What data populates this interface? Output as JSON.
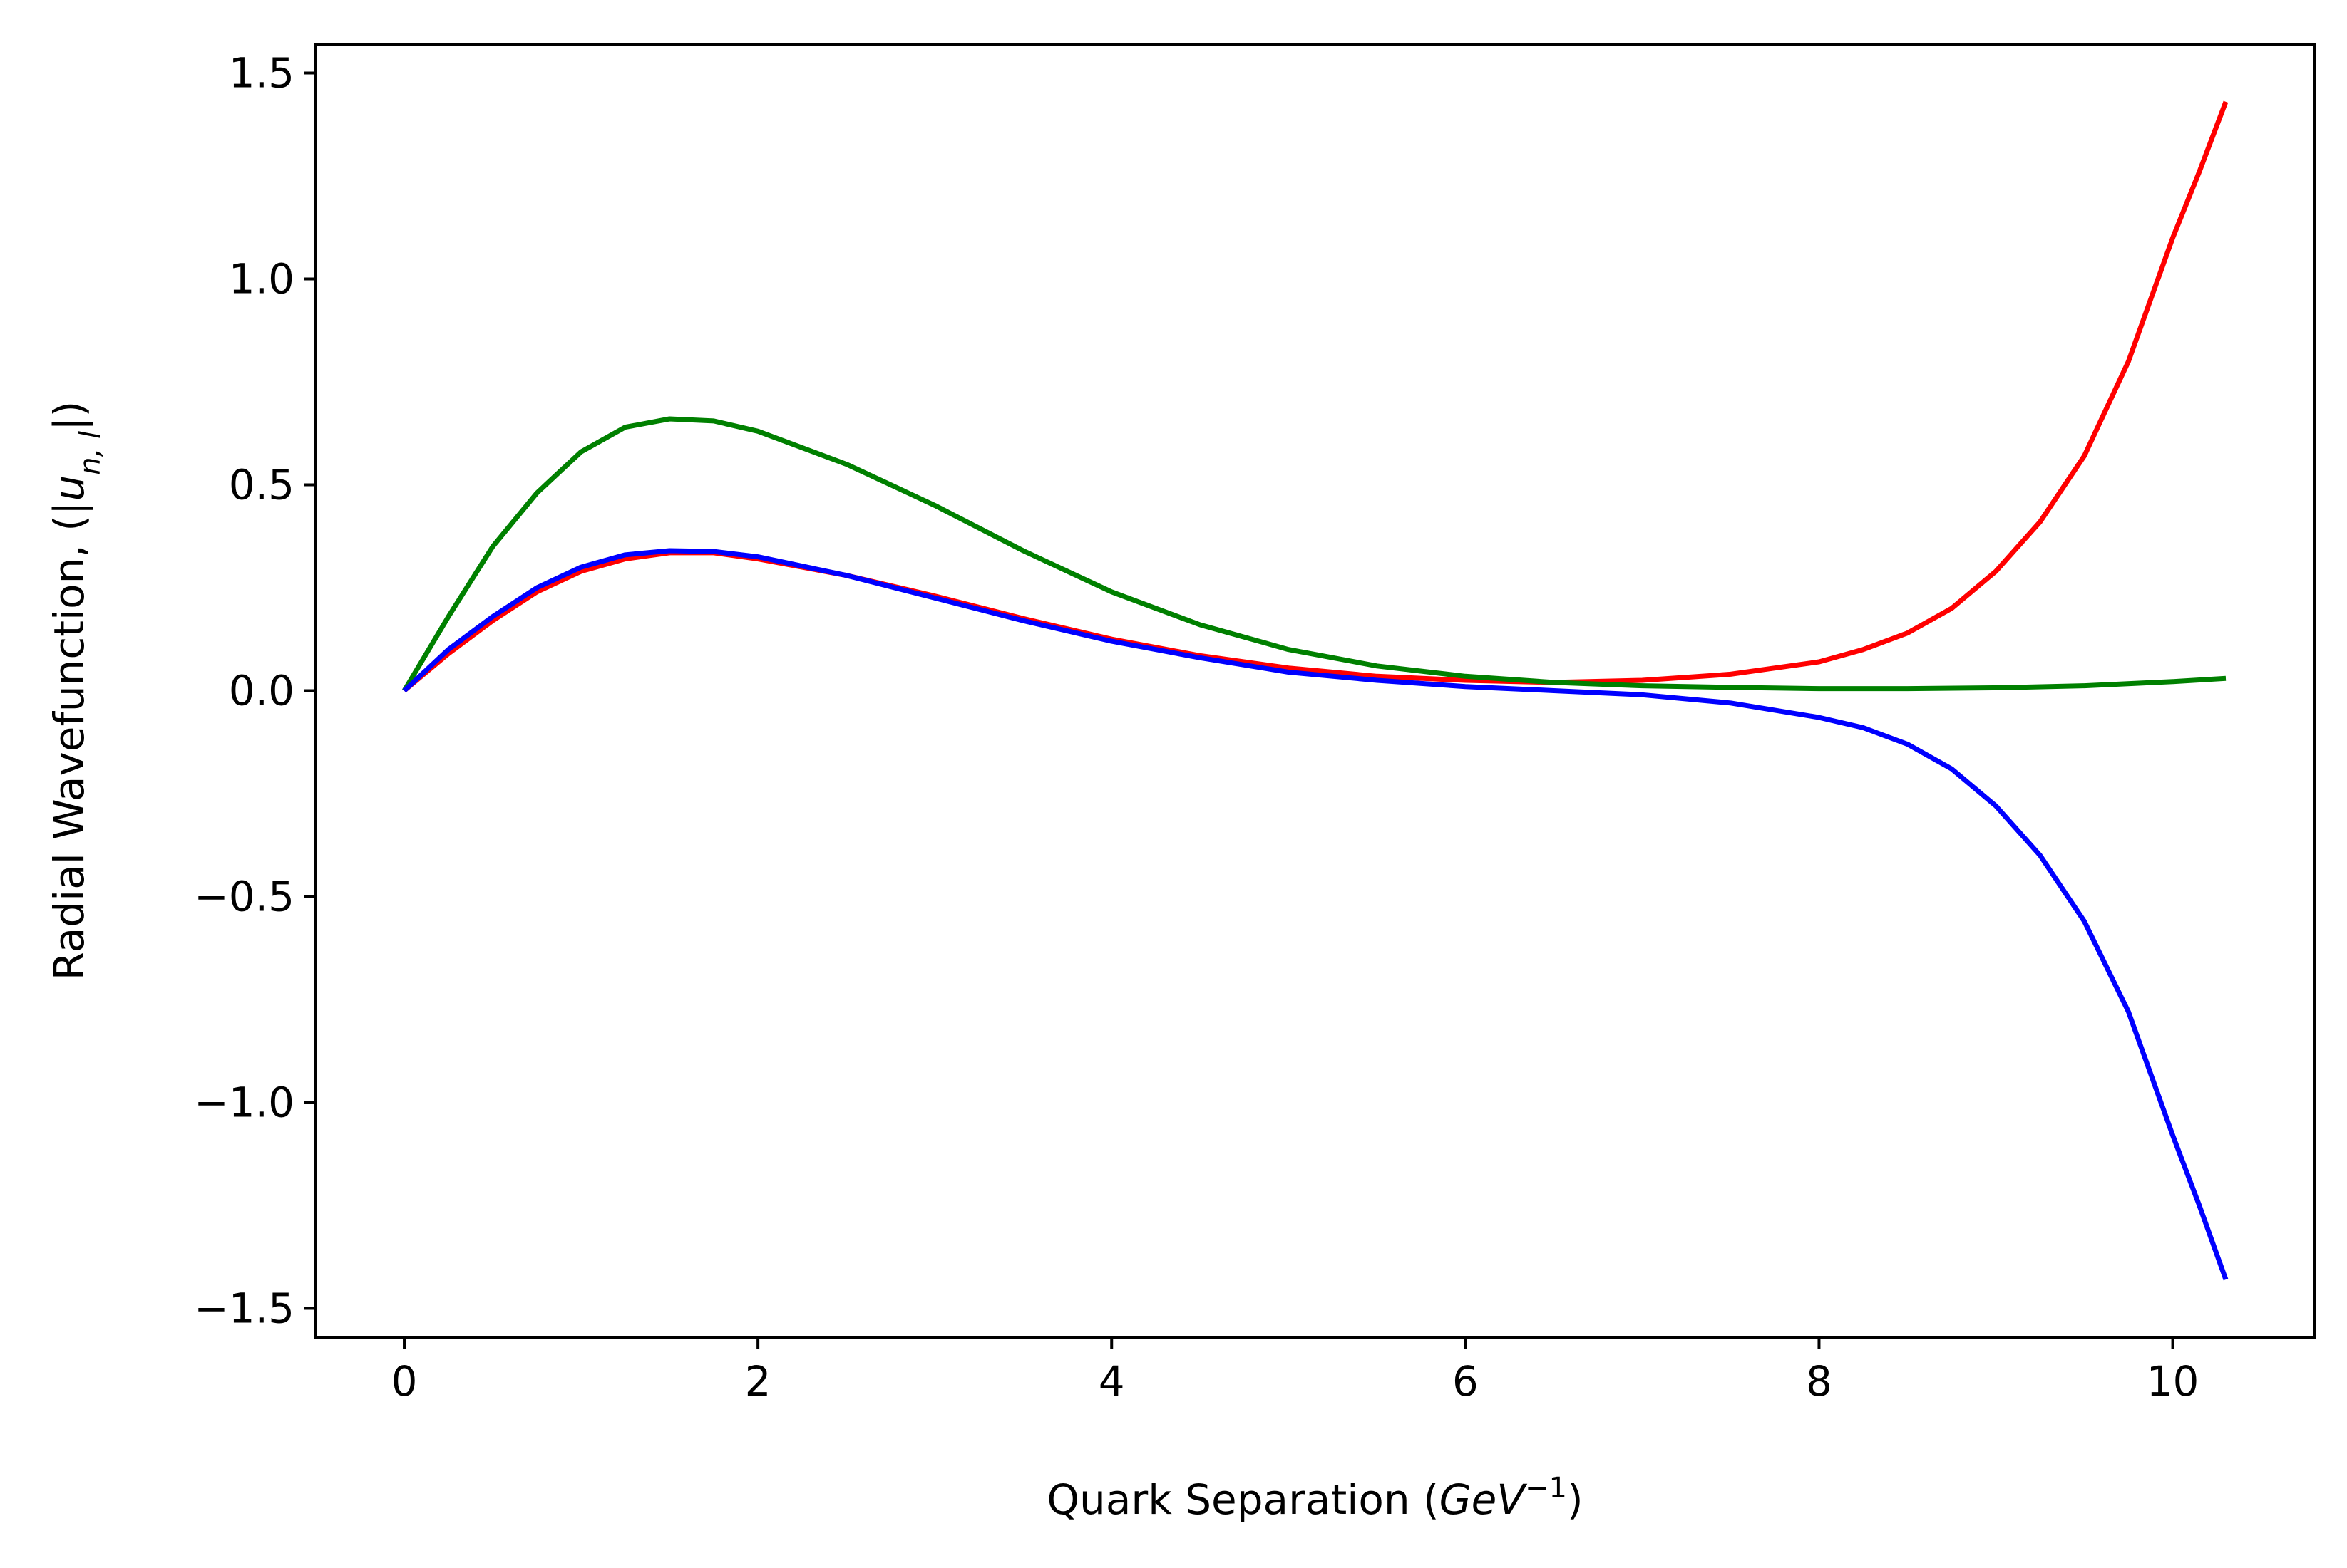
{
  "chart_data": {
    "type": "line",
    "title": "",
    "xlabel": {
      "prefix": "Quark Separation (",
      "math": "GeV",
      "sup": "−1",
      "suffix": ")"
    },
    "ylabel": {
      "prefix": "Radial Wavefunction, (|",
      "math": "u",
      "sub": "n, l",
      "suffix": "|)"
    },
    "xlim": [
      -0.5,
      10.8
    ],
    "ylim": [
      -1.57,
      1.57
    ],
    "xticks": [
      0,
      2,
      4,
      6,
      8,
      10
    ],
    "xtick_labels": [
      "0",
      "2",
      "4",
      "6",
      "8",
      "10"
    ],
    "yticks": [
      1.5,
      1.0,
      0.5,
      0.0,
      -0.5,
      -1.0,
      -1.5
    ],
    "ytick_labels": [
      "1.5",
      "1.0",
      "0.5",
      "0.0",
      "−0.5",
      "−1.0",
      "−1.5"
    ],
    "grid": false,
    "legend": false,
    "series": [
      {
        "color": "#ff0000",
        "x": [
          0,
          0.25,
          0.5,
          0.75,
          1.0,
          1.25,
          1.5,
          1.75,
          2.0,
          2.5,
          3.0,
          3.5,
          4.0,
          4.5,
          5.0,
          5.5,
          6.0,
          6.5,
          7.0,
          7.5,
          8.0,
          8.25,
          8.5,
          8.75,
          9.0,
          9.25,
          9.5,
          9.75,
          10.0,
          10.15,
          10.3
        ],
        "y": [
          0,
          0.09,
          0.17,
          0.24,
          0.29,
          0.32,
          0.335,
          0.335,
          0.32,
          0.28,
          0.23,
          0.175,
          0.125,
          0.085,
          0.055,
          0.035,
          0.025,
          0.02,
          0.025,
          0.04,
          0.07,
          0.1,
          0.14,
          0.2,
          0.29,
          0.41,
          0.57,
          0.8,
          1.1,
          1.26,
          1.43
        ]
      },
      {
        "color": "#008000",
        "x": [
          0,
          0.25,
          0.5,
          0.75,
          1.0,
          1.25,
          1.5,
          1.75,
          2.0,
          2.5,
          3.0,
          3.5,
          4.0,
          4.5,
          5.0,
          5.5,
          6.0,
          6.5,
          7.0,
          7.5,
          8.0,
          8.5,
          9.0,
          9.5,
          10.0,
          10.3
        ],
        "y": [
          0,
          0.18,
          0.35,
          0.48,
          0.58,
          0.64,
          0.66,
          0.655,
          0.63,
          0.55,
          0.45,
          0.34,
          0.24,
          0.16,
          0.1,
          0.06,
          0.035,
          0.02,
          0.012,
          0.008,
          0.005,
          0.005,
          0.007,
          0.012,
          0.022,
          0.03
        ]
      },
      {
        "color": "#0000ff",
        "x": [
          0,
          0.25,
          0.5,
          0.75,
          1.0,
          1.25,
          1.5,
          1.75,
          2.0,
          2.5,
          3.0,
          3.5,
          4.0,
          4.5,
          5.0,
          5.5,
          6.0,
          6.5,
          7.0,
          7.5,
          8.0,
          8.25,
          8.5,
          8.75,
          9.0,
          9.25,
          9.5,
          9.75,
          10.0,
          10.15,
          10.3
        ],
        "y": [
          0,
          0.1,
          0.18,
          0.25,
          0.3,
          0.33,
          0.34,
          0.338,
          0.325,
          0.28,
          0.225,
          0.17,
          0.12,
          0.08,
          0.045,
          0.025,
          0.01,
          0.0,
          -0.01,
          -0.03,
          -0.065,
          -0.09,
          -0.13,
          -0.19,
          -0.28,
          -0.4,
          -0.56,
          -0.78,
          -1.08,
          -1.25,
          -1.43
        ]
      }
    ]
  }
}
